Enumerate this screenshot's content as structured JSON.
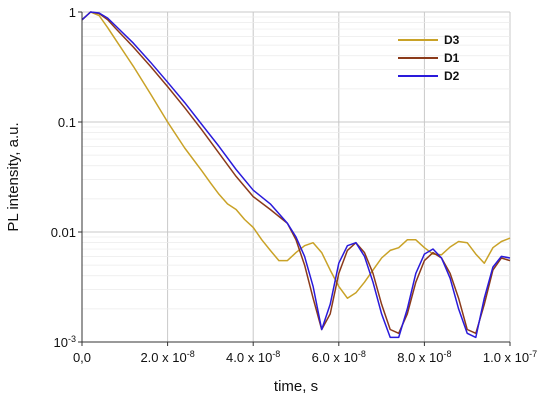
{
  "chart_data": {
    "type": "line",
    "xlabel": "time, s",
    "ylabel": "PL intensity, a.u.",
    "x_scale": "linear",
    "y_scale": "log",
    "xlim": [
      0,
      1e-07
    ],
    "ylim": [
      0.001,
      1
    ],
    "grid": true,
    "legend_position": "top-right",
    "x_ticks": [
      {
        "value": 0,
        "base": "0,0",
        "exp": ""
      },
      {
        "value": 2e-08,
        "base": "2.0 x 10",
        "exp": "-8"
      },
      {
        "value": 4e-08,
        "base": "4.0 x 10",
        "exp": "-8"
      },
      {
        "value": 6e-08,
        "base": "6.0 x 10",
        "exp": "-8"
      },
      {
        "value": 8e-08,
        "base": "8.0 x 10",
        "exp": "-8"
      },
      {
        "value": 1e-07,
        "base": "1.0 x 10",
        "exp": "-7"
      }
    ],
    "y_ticks": [
      {
        "value": 1,
        "base": "1",
        "exp": ""
      },
      {
        "value": 0.1,
        "base": "0.1",
        "exp": ""
      },
      {
        "value": 0.01,
        "base": "0.01",
        "exp": ""
      },
      {
        "value": 0.001,
        "base": "10",
        "exp": "-3"
      }
    ],
    "series": [
      {
        "name": "D3",
        "color": "#c9a227",
        "x": [
          0,
          2e-09,
          4e-09,
          6e-09,
          8e-09,
          1.2e-08,
          1.6e-08,
          2e-08,
          2.4e-08,
          2.8e-08,
          3e-08,
          3.2e-08,
          3.4e-08,
          3.6e-08,
          3.8e-08,
          4e-08,
          4.2e-08,
          4.4e-08,
          4.6e-08,
          4.8e-08,
          5e-08,
          5.2e-08,
          5.4e-08,
          5.6e-08,
          5.8e-08,
          6e-08,
          6.2e-08,
          6.4e-08,
          6.6e-08,
          6.8e-08,
          7e-08,
          7.2e-08,
          7.4e-08,
          7.6e-08,
          7.8e-08,
          8e-08,
          8.2e-08,
          8.4e-08,
          8.6e-08,
          8.8e-08,
          9e-08,
          9.2e-08,
          9.4e-08,
          9.6e-08,
          9.8e-08,
          1e-07
        ],
        "y": [
          0.85,
          1.0,
          0.93,
          0.72,
          0.55,
          0.32,
          0.18,
          0.1,
          0.058,
          0.036,
          0.028,
          0.022,
          0.018,
          0.016,
          0.013,
          0.011,
          0.0085,
          0.0068,
          0.0055,
          0.0055,
          0.0065,
          0.0075,
          0.008,
          0.0065,
          0.0045,
          0.0032,
          0.0025,
          0.0028,
          0.0035,
          0.0045,
          0.0058,
          0.0068,
          0.0072,
          0.0085,
          0.0085,
          0.0072,
          0.0063,
          0.0062,
          0.0073,
          0.0082,
          0.008,
          0.0063,
          0.0052,
          0.0072,
          0.0082,
          0.0088
        ]
      },
      {
        "name": "D1",
        "color": "#8b3a1a",
        "x": [
          0,
          2e-09,
          4e-09,
          6e-09,
          8e-09,
          1.2e-08,
          1.6e-08,
          2e-08,
          2.4e-08,
          2.8e-08,
          3.2e-08,
          3.6e-08,
          4e-08,
          4.4e-08,
          4.8e-08,
          5e-08,
          5.2e-08,
          5.4e-08,
          5.6e-08,
          5.8e-08,
          6e-08,
          6.2e-08,
          6.4e-08,
          6.6e-08,
          6.8e-08,
          7e-08,
          7.2e-08,
          7.4e-08,
          7.6e-08,
          7.8e-08,
          8e-08,
          8.2e-08,
          8.4e-08,
          8.6e-08,
          8.8e-08,
          9e-08,
          9.2e-08,
          9.4e-08,
          9.6e-08,
          9.8e-08,
          1e-07
        ],
        "y": [
          0.85,
          1.0,
          0.97,
          0.85,
          0.7,
          0.48,
          0.32,
          0.21,
          0.135,
          0.085,
          0.052,
          0.032,
          0.021,
          0.016,
          0.012,
          0.0085,
          0.005,
          0.0025,
          0.0013,
          0.0018,
          0.0042,
          0.0068,
          0.008,
          0.0065,
          0.0042,
          0.0022,
          0.0013,
          0.0012,
          0.0018,
          0.0035,
          0.0055,
          0.0065,
          0.0058,
          0.0042,
          0.0025,
          0.0013,
          0.0012,
          0.0022,
          0.0045,
          0.0058,
          0.0055
        ]
      },
      {
        "name": "D2",
        "color": "#2a1adb",
        "x": [
          0,
          2e-09,
          4e-09,
          6e-09,
          8e-09,
          1.2e-08,
          1.6e-08,
          2e-08,
          2.4e-08,
          2.8e-08,
          3.2e-08,
          3.6e-08,
          4e-08,
          4.4e-08,
          4.8e-08,
          5e-08,
          5.2e-08,
          5.4e-08,
          5.6e-08,
          5.8e-08,
          6e-08,
          6.2e-08,
          6.4e-08,
          6.6e-08,
          6.8e-08,
          7e-08,
          7.2e-08,
          7.4e-08,
          7.6e-08,
          7.8e-08,
          8e-08,
          8.2e-08,
          8.4e-08,
          8.6e-08,
          8.8e-08,
          9e-08,
          9.2e-08,
          9.4e-08,
          9.6e-08,
          9.8e-08,
          1e-07
        ],
        "y": [
          0.85,
          1.0,
          0.98,
          0.88,
          0.74,
          0.52,
          0.35,
          0.23,
          0.15,
          0.095,
          0.06,
          0.037,
          0.024,
          0.018,
          0.012,
          0.009,
          0.006,
          0.0032,
          0.0013,
          0.0022,
          0.0052,
          0.0075,
          0.008,
          0.006,
          0.0035,
          0.0018,
          0.0011,
          0.0011,
          0.002,
          0.0042,
          0.0063,
          0.007,
          0.0058,
          0.0038,
          0.002,
          0.0012,
          0.0011,
          0.0025,
          0.0048,
          0.006,
          0.0058
        ]
      }
    ]
  }
}
